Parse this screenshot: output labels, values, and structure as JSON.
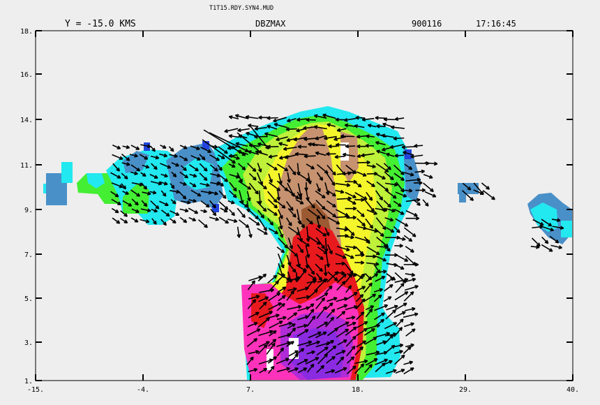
{
  "header": {
    "filename": "T1T15.RDY.SYN4.MUD",
    "slice_label": "Y =  -15.0 KMS",
    "field": "DBZMAX",
    "date": "900116",
    "time": "17:16:45"
  },
  "chart_data": {
    "type": "heatmap",
    "title": "DBZMAX",
    "x_ticks": [
      "-15.",
      "-4.",
      "7.",
      "18.",
      "29.",
      "40."
    ],
    "y_ticks": [
      "1.",
      "3.",
      "5.",
      "7.",
      "9.",
      "11.",
      "14.",
      "16.",
      "18."
    ],
    "xlim": [
      -15,
      40
    ],
    "ylim": [
      1,
      18
    ],
    "colors": {
      "blue": "#2244dd",
      "steel_blue": "#4a90c8",
      "cyan": "#22e8f0",
      "green": "#44ee33",
      "yellow_green": "#bff03a",
      "yellow": "#f5f52c",
      "tan": "#c79270",
      "brown": "#9c5a32",
      "red": "#e81a1e",
      "pink": "#ff33bb",
      "magenta": "#b02cd8",
      "purple": "#8a2be2",
      "white": "#ffffff",
      "vector": "#000000"
    },
    "vectors": "wind vectors (black arrows) overlaid on reflectivity field"
  }
}
